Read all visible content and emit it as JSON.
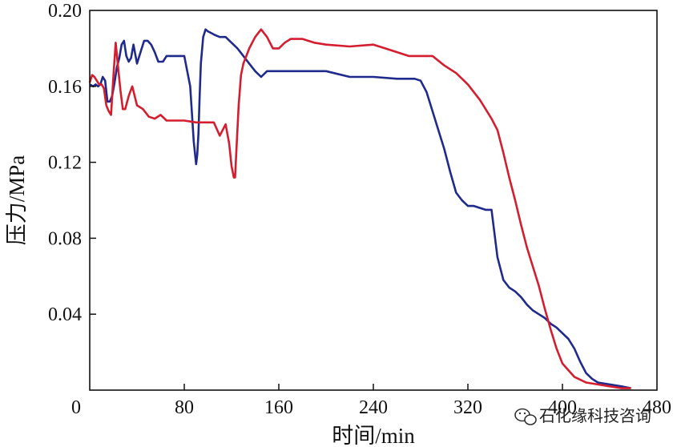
{
  "chart_data": {
    "type": "line",
    "title": "",
    "xlabel": "时间/min",
    "ylabel": "压力/MPa",
    "xlim": [
      0,
      480
    ],
    "ylim": [
      0,
      0.2
    ],
    "xticks": [
      0,
      80,
      160,
      240,
      320,
      400,
      480
    ],
    "yticks": [
      0.04,
      0.08,
      0.12,
      0.16,
      0.2
    ],
    "xtick_labels": [
      "0",
      "80",
      "160",
      "240",
      "320",
      "400",
      "480"
    ],
    "ytick_labels": [
      "0.04",
      "0.08",
      "0.12",
      "0.16",
      "0.20"
    ],
    "grid": false,
    "legend": "none",
    "series": [
      {
        "color": "#1f2a8c",
        "x": [
          0,
          3,
          5,
          7,
          9,
          11,
          13,
          15,
          17,
          19,
          21,
          23,
          25,
          27,
          29,
          31,
          33,
          35,
          37,
          40,
          43,
          46,
          49,
          52,
          55,
          58,
          60,
          62,
          65,
          70,
          75,
          80,
          85,
          88,
          89,
          90,
          91,
          92,
          93,
          94,
          96,
          98,
          100,
          103,
          106,
          110,
          115,
          120,
          125,
          130,
          135,
          140,
          145,
          150,
          160,
          180,
          200,
          220,
          240,
          260,
          270,
          275,
          280,
          285,
          290,
          295,
          300,
          305,
          310,
          315,
          320,
          325,
          330,
          335,
          340,
          345,
          350,
          355,
          360,
          365,
          370,
          375,
          380,
          385,
          390,
          395,
          400,
          405,
          410,
          415,
          420,
          425,
          430,
          440,
          450,
          458
        ],
        "y": [
          0.161,
          0.16,
          0.161,
          0.16,
          0.161,
          0.165,
          0.163,
          0.152,
          0.152,
          0.155,
          0.162,
          0.17,
          0.175,
          0.182,
          0.184,
          0.176,
          0.173,
          0.175,
          0.182,
          0.172,
          0.178,
          0.184,
          0.184,
          0.182,
          0.178,
          0.173,
          0.173,
          0.173,
          0.176,
          0.176,
          0.176,
          0.176,
          0.16,
          0.131,
          0.125,
          0.119,
          0.124,
          0.135,
          0.155,
          0.172,
          0.186,
          0.19,
          0.189,
          0.188,
          0.187,
          0.186,
          0.186,
          0.183,
          0.18,
          0.176,
          0.172,
          0.168,
          0.165,
          0.168,
          0.168,
          0.168,
          0.168,
          0.165,
          0.165,
          0.164,
          0.164,
          0.164,
          0.163,
          0.157,
          0.147,
          0.137,
          0.127,
          0.115,
          0.104,
          0.1,
          0.097,
          0.097,
          0.096,
          0.095,
          0.095,
          0.07,
          0.058,
          0.054,
          0.052,
          0.049,
          0.045,
          0.042,
          0.04,
          0.038,
          0.035,
          0.033,
          0.03,
          0.027,
          0.022,
          0.015,
          0.009,
          0.006,
          0.004,
          0.003,
          0.002,
          0.001
        ]
      },
      {
        "color": "#d41e2f",
        "x": [
          0,
          2,
          4,
          6,
          8,
          10,
          12,
          14,
          16,
          18,
          20,
          22,
          24,
          26,
          28,
          30,
          33,
          36,
          40,
          45,
          50,
          55,
          60,
          65,
          70,
          80,
          90,
          100,
          105,
          110,
          115,
          118,
          120,
          122,
          123,
          124,
          126,
          128,
          130,
          135,
          140,
          145,
          150,
          155,
          160,
          165,
          170,
          180,
          190,
          200,
          220,
          240,
          250,
          260,
          270,
          280,
          290,
          300,
          310,
          320,
          330,
          340,
          345,
          350,
          355,
          360,
          365,
          370,
          375,
          380,
          385,
          390,
          395,
          400,
          410,
          420,
          430,
          440,
          450,
          458
        ],
        "y": [
          0.162,
          0.166,
          0.165,
          0.163,
          0.161,
          0.161,
          0.159,
          0.15,
          0.147,
          0.145,
          0.165,
          0.183,
          0.17,
          0.158,
          0.148,
          0.148,
          0.155,
          0.16,
          0.15,
          0.148,
          0.144,
          0.143,
          0.145,
          0.142,
          0.142,
          0.142,
          0.141,
          0.141,
          0.141,
          0.134,
          0.14,
          0.13,
          0.118,
          0.112,
          0.112,
          0.125,
          0.15,
          0.166,
          0.172,
          0.18,
          0.186,
          0.19,
          0.186,
          0.18,
          0.18,
          0.183,
          0.185,
          0.185,
          0.183,
          0.182,
          0.181,
          0.182,
          0.18,
          0.178,
          0.176,
          0.176,
          0.176,
          0.171,
          0.167,
          0.161,
          0.153,
          0.143,
          0.137,
          0.125,
          0.112,
          0.1,
          0.087,
          0.075,
          0.065,
          0.055,
          0.043,
          0.032,
          0.022,
          0.014,
          0.007,
          0.004,
          0.003,
          0.002,
          0.001,
          0.001
        ]
      }
    ]
  },
  "watermark": {
    "icon": "wechat-icon",
    "text": "石化缘科技咨询"
  }
}
